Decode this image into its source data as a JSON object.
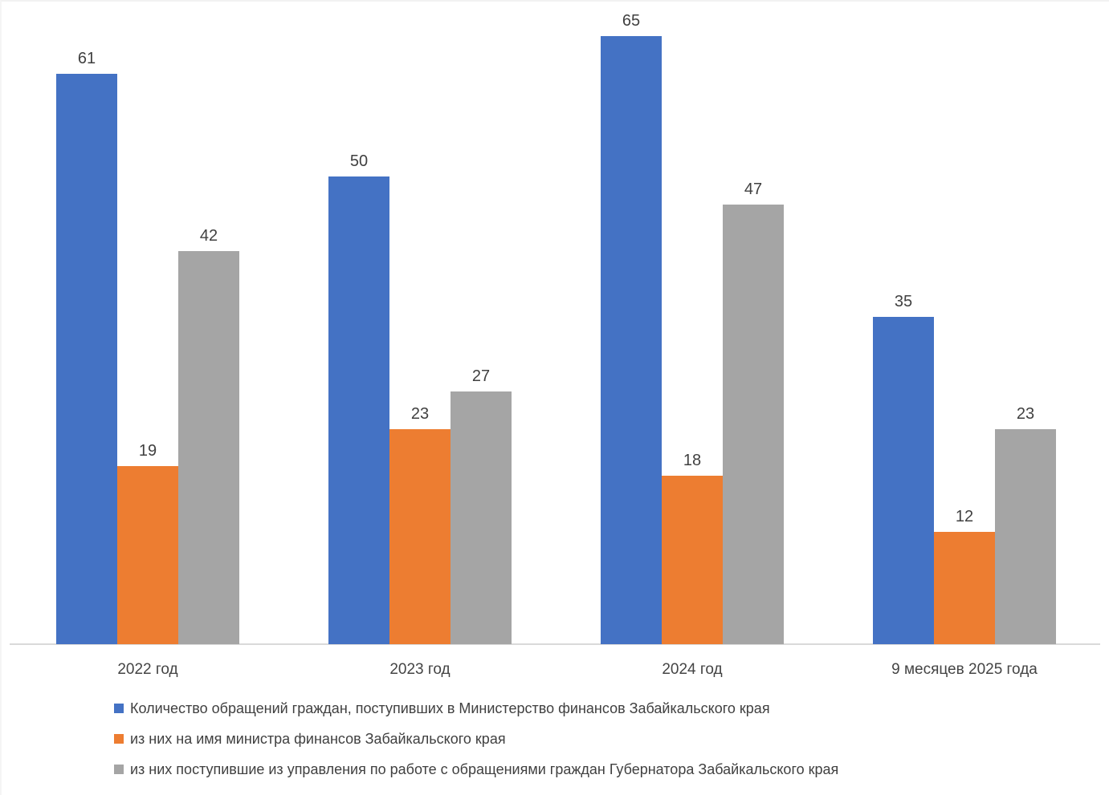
{
  "chart_data": {
    "type": "bar",
    "categories": [
      "2022 год",
      "2023 год",
      "2024 год",
      "9 месяцев 2025 года"
    ],
    "series": [
      {
        "name": "Количество обращений граждан, поступивших в Министерство финансов Забайкальского края",
        "color": "#4472C4",
        "values": [
          61,
          50,
          65,
          35
        ]
      },
      {
        "name": "из них на имя министра финансов Забайкальского края",
        "color": "#ED7D31",
        "values": [
          19,
          23,
          18,
          12
        ]
      },
      {
        "name": "из них поступившие из управления по работе с обращениями граждан Губернатора Забайкальского края",
        "color": "#A5A5A5",
        "values": [
          42,
          27,
          47,
          23
        ]
      }
    ],
    "title": "",
    "xlabel": "",
    "ylabel": "",
    "ylim": [
      0,
      65
    ],
    "grid": false,
    "y_axis_visible": false,
    "data_labels": true,
    "legend_position": "bottom-left",
    "axis_line_color": "#D9D9D9",
    "label_text_color": "#404040"
  }
}
